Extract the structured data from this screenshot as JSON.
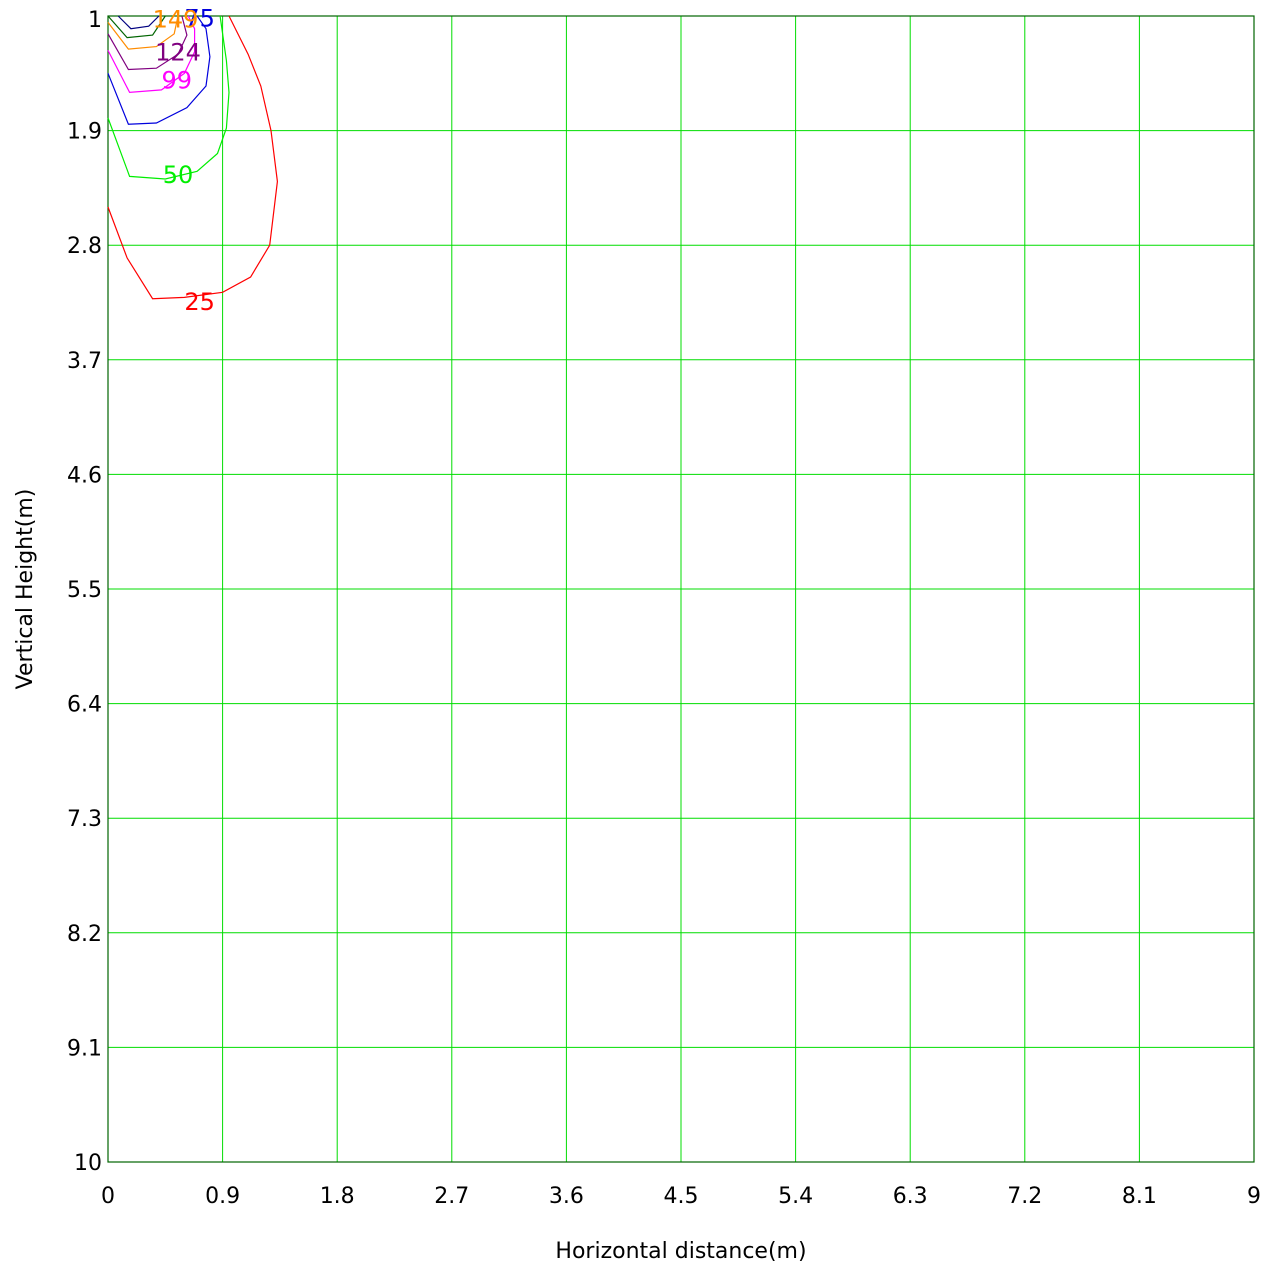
{
  "chart_data": {
    "type": "contour",
    "xlabel": "Horizontal distance(m)",
    "ylabel": "Vertical Height(m)",
    "xlim": [
      0,
      9
    ],
    "ylim": [
      1,
      10
    ],
    "y_inverted": true,
    "grid": true,
    "grid_color": "#00dd00",
    "axis_color": "#006400",
    "x_ticks": [
      "0",
      "0.9",
      "1.8",
      "2.7",
      "3.6",
      "4.5",
      "5.4",
      "6.3",
      "7.2",
      "8.1",
      "9"
    ],
    "y_ticks": [
      "1",
      "1.9",
      "2.8",
      "3.7",
      "4.6",
      "5.5",
      "6.4",
      "7.3",
      "8.2",
      "9.1",
      "10"
    ],
    "contours": [
      {
        "level": "25",
        "color": "#ff0000",
        "label_at": [
          0.72,
          3.24
        ],
        "points": [
          [
            0.0,
            2.5
          ],
          [
            0.15,
            2.9
          ],
          [
            0.35,
            3.22
          ],
          [
            0.6,
            3.21
          ],
          [
            0.9,
            3.17
          ],
          [
            1.12,
            3.05
          ],
          [
            1.27,
            2.8
          ],
          [
            1.33,
            2.3
          ],
          [
            1.28,
            1.9
          ],
          [
            1.2,
            1.55
          ],
          [
            1.1,
            1.3
          ],
          [
            0.95,
            1.0
          ]
        ]
      },
      {
        "level": "50",
        "color": "#00ee00",
        "label_at": [
          0.55,
          2.24
        ],
        "points": [
          [
            0.0,
            1.8
          ],
          [
            0.17,
            2.26
          ],
          [
            0.45,
            2.28
          ],
          [
            0.7,
            2.22
          ],
          [
            0.86,
            2.08
          ],
          [
            0.93,
            1.88
          ],
          [
            0.95,
            1.6
          ],
          [
            0.93,
            1.35
          ],
          [
            0.88,
            1.0
          ]
        ]
      },
      {
        "level": "75",
        "color": "#0000dd",
        "label_at": [
          0.72,
          1.01
        ],
        "points": [
          [
            0.0,
            1.45
          ],
          [
            0.16,
            1.85
          ],
          [
            0.38,
            1.84
          ],
          [
            0.62,
            1.72
          ],
          [
            0.77,
            1.55
          ],
          [
            0.8,
            1.32
          ],
          [
            0.77,
            1.1
          ],
          [
            0.7,
            1.0
          ]
        ]
      },
      {
        "level": "99",
        "color": "#ff00ff",
        "label_at": [
          0.54,
          1.5
        ],
        "points": [
          [
            0.0,
            1.27
          ],
          [
            0.17,
            1.6
          ],
          [
            0.42,
            1.58
          ],
          [
            0.6,
            1.45
          ],
          [
            0.68,
            1.28
          ],
          [
            0.68,
            1.1
          ],
          [
            0.63,
            1.0
          ]
        ]
      },
      {
        "level": "124",
        "color": "#800080",
        "label_at": [
          0.55,
          1.28
        ],
        "points": [
          [
            0.0,
            1.14
          ],
          [
            0.16,
            1.42
          ],
          [
            0.38,
            1.41
          ],
          [
            0.55,
            1.3
          ],
          [
            0.62,
            1.15
          ],
          [
            0.58,
            1.0
          ]
        ]
      },
      {
        "level": "149",
        "color": "#ff8c00",
        "label_at": [
          0.53,
          1.02
        ],
        "points": [
          [
            0.0,
            1.05
          ],
          [
            0.16,
            1.26
          ],
          [
            0.38,
            1.24
          ],
          [
            0.52,
            1.14
          ],
          [
            0.55,
            1.0
          ]
        ]
      },
      {
        "level": "",
        "color": "#006400",
        "label_at": null,
        "points": [
          [
            0.0,
            1.0
          ],
          [
            0.15,
            1.17
          ],
          [
            0.35,
            1.15
          ],
          [
            0.45,
            1.0
          ]
        ]
      },
      {
        "level": "",
        "color": "#000080",
        "label_at": null,
        "points": [
          [
            0.08,
            1.0
          ],
          [
            0.18,
            1.1
          ],
          [
            0.32,
            1.08
          ],
          [
            0.4,
            1.0
          ]
        ]
      }
    ]
  }
}
